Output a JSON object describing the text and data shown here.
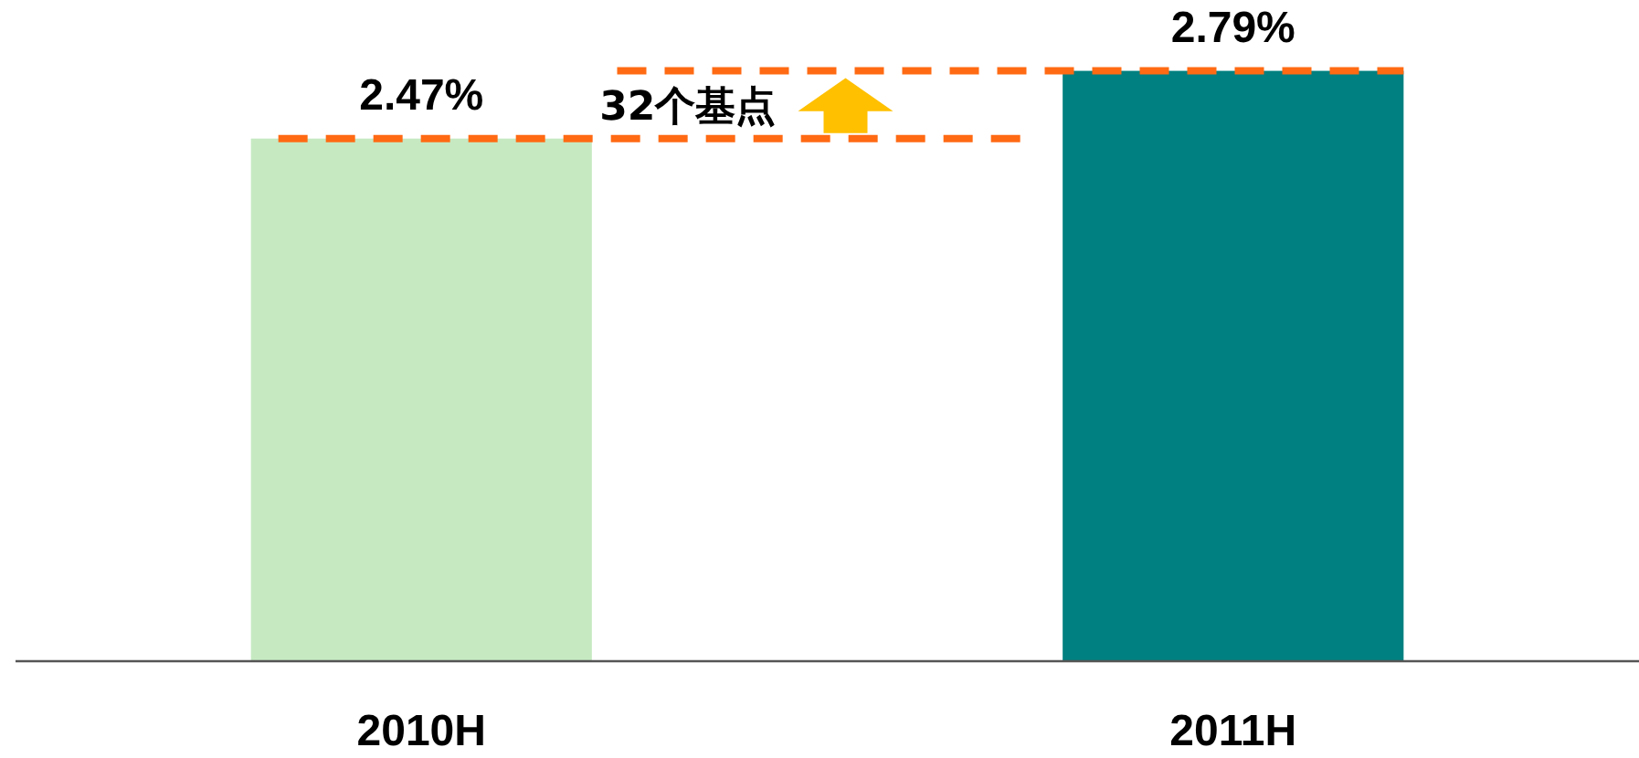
{
  "chart_data": {
    "type": "bar",
    "categories": [
      "2010H",
      "2011H"
    ],
    "values": [
      2.47,
      2.79
    ],
    "colors": [
      "#c6e9c2",
      "#008080"
    ],
    "value_labels": [
      "2.47%",
      "2.79%"
    ],
    "ref_lines": [
      {
        "axis": "y",
        "value": 2.47,
        "color": "#ff6a13",
        "line_style": "dashed"
      },
      {
        "axis": "y",
        "value": 2.79,
        "color": "#ff6a13",
        "line_style": "dashed"
      }
    ],
    "annotations": [
      "32个基点"
    ]
  }
}
